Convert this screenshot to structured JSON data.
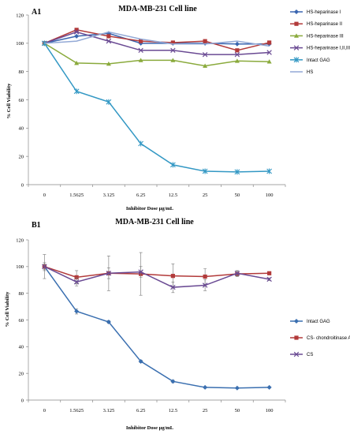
{
  "chart_data": [
    {
      "type": "line",
      "panel_label": "A1",
      "title": "MDA-MB-231 Cell line",
      "xlabel": "Inhibitor Dose μg/mL",
      "ylabel": "% Cell Viability",
      "categories": [
        "0",
        "1.5625",
        "3.125",
        "6.25",
        "12.5",
        "25",
        "50",
        "100"
      ],
      "ylim": [
        0,
        120
      ],
      "yticks": [
        "0",
        "20",
        "40",
        "60",
        "80",
        "100",
        "120"
      ],
      "legend_position": "right",
      "series": [
        {
          "name": "HS-heparinase I",
          "color": "#3a66b0",
          "marker": "diamond",
          "values": [
            100,
            105,
            107,
            100,
            100,
            100,
            99.5,
            99.5
          ]
        },
        {
          "name": "HS-heparinase II",
          "color": "#b23a3a",
          "marker": "square",
          "values": [
            100,
            109.5,
            105,
            101.5,
            100.5,
            101.5,
            95,
            100.5
          ]
        },
        {
          "name": "HS-heparinase III",
          "color": "#8aaa3c",
          "marker": "triangle",
          "values": [
            100,
            86,
            85.5,
            88,
            88,
            84,
            87.5,
            87
          ]
        },
        {
          "name": "HS-heparinase I,II,III",
          "color": "#6a4a93",
          "marker": "x",
          "values": [
            100,
            108,
            101.5,
            95,
            95,
            92,
            92,
            93.5
          ]
        },
        {
          "name": "Intact GAG",
          "color": "#3398c4",
          "marker": "star",
          "values": [
            100,
            66,
            58.5,
            29,
            14,
            9.5,
            9,
            9.5
          ]
        },
        {
          "name": "HS",
          "color": "#93a9d6",
          "marker": "none",
          "values": [
            100,
            101.5,
            108,
            103,
            99.5,
            99.5,
            101.5,
            98
          ]
        }
      ]
    },
    {
      "type": "line",
      "panel_label": "B1",
      "title": "MDA-MB-231 Cell line",
      "xlabel": "Inhibitor Dose μg/mL",
      "ylabel": "% Cell Viability",
      "categories": [
        "0",
        "1.5625",
        "3.125",
        "6.25",
        "12.5",
        "25",
        "50",
        "100"
      ],
      "ylim": [
        0,
        120
      ],
      "yticks": [
        "0",
        "20",
        "40",
        "60",
        "80",
        "100",
        "120"
      ],
      "legend_position": "right",
      "series": [
        {
          "name": "Intact GAG",
          "color": "#3a6fb0",
          "marker": "diamond",
          "values": [
            100,
            66.5,
            58.5,
            29,
            14,
            9.5,
            9,
            9.5
          ],
          "errors": [
            2,
            2,
            1,
            1,
            1,
            0.5,
            0.5,
            0.5
          ]
        },
        {
          "name": "CS- chondroitinase ABC",
          "color": "#b23a3a",
          "marker": "square",
          "values": [
            100,
            92,
            95,
            94.5,
            93,
            92.5,
            94.5,
            95
          ],
          "errors": [
            9,
            5,
            13,
            16,
            9,
            6,
            2,
            0.5
          ]
        },
        {
          "name": "CS",
          "color": "#6a4a93",
          "marker": "x",
          "values": [
            100,
            88.5,
            95,
            96,
            84.5,
            86,
            95,
            90.5
          ],
          "errors": [
            3,
            3,
            4,
            4,
            4,
            4,
            2,
            1
          ]
        }
      ]
    }
  ]
}
